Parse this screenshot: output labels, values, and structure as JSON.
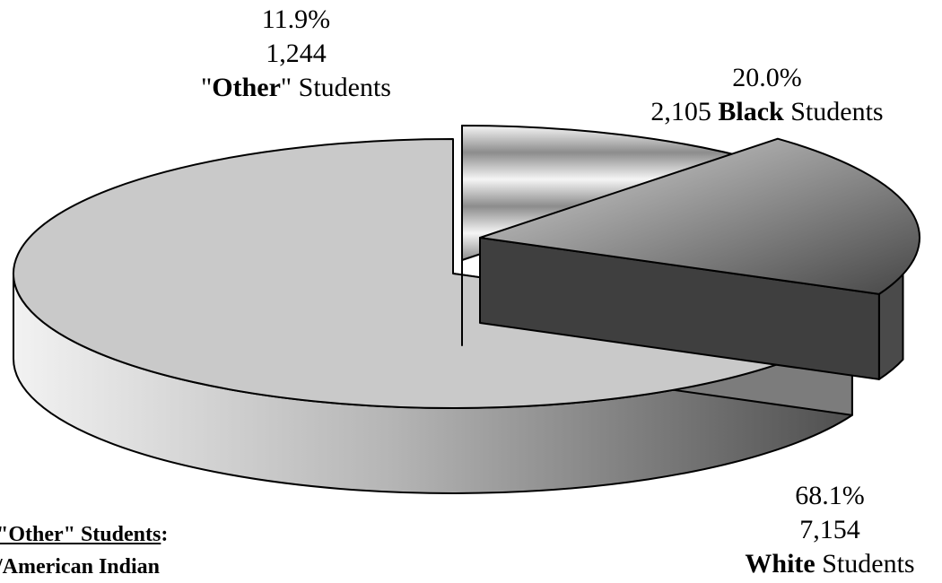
{
  "chart_data": {
    "type": "pie",
    "style": "3d-exploded",
    "series": [
      {
        "category": "Other",
        "count": 1244,
        "percent": 11.9,
        "count_label": "1,244",
        "percent_label": "11.9%",
        "label_pre": "\"",
        "label_bold": "Other",
        "label_post": "\" Students",
        "colors": {
          "top_light": "#f5f5f5",
          "top_dark": "#8c8c8c",
          "side": "#5e5e5e",
          "inner": "#7a7a7a"
        }
      },
      {
        "category": "Black",
        "count": 2105,
        "percent": 20.0,
        "count_label": "2,105",
        "percent_label": "20.0%",
        "label_bold": "Black",
        "label_post": " Students",
        "colors": {
          "top_light": "#d8d8d8",
          "top_dark": "#474747",
          "side": "#4a4a4a",
          "inner": "#3f3f3f"
        }
      },
      {
        "category": "White",
        "count": 7154,
        "percent": 68.1,
        "count_label": "7,154",
        "percent_label": "68.1%",
        "label_bold": "White",
        "label_post": " Students",
        "colors": {
          "top": "#c9c9c9",
          "side_light": "#f2f2f2",
          "side_dark": "#4f4f4f",
          "inner": "#7c7c7c"
        }
      }
    ]
  },
  "note": {
    "header": "\"Other\" Students",
    "header_suffix": ":",
    "line2": "/American Indian"
  }
}
